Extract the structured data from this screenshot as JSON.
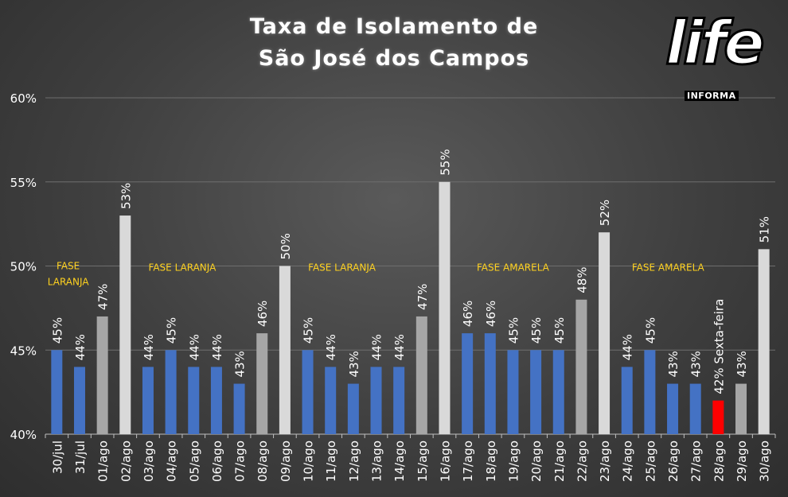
{
  "title": [
    "Taxa de Isolamento de",
    "São José dos Campos"
  ],
  "logo": {
    "main": "life",
    "sub": "INFORMA"
  },
  "chart_data": {
    "type": "bar",
    "ylim": [
      40,
      60
    ],
    "yticks": [
      "40%",
      "45%",
      "50%",
      "55%",
      "60%"
    ],
    "ytick_values": [
      40,
      45,
      50,
      55,
      60
    ],
    "grid": true,
    "categories": [
      "30/jul",
      "31/jul",
      "01/ago",
      "02/ago",
      "03/ago",
      "04/ago",
      "05/ago",
      "06/ago",
      "07/ago",
      "08/ago",
      "09/ago",
      "10/ago",
      "11/ago",
      "12/ago",
      "13/ago",
      "14/ago",
      "15/ago",
      "16/ago",
      "17/ago",
      "18/ago",
      "19/ago",
      "20/ago",
      "21/ago",
      "22/ago",
      "23/ago",
      "24/ago",
      "25/ago",
      "26/ago",
      "27/ago",
      "28/ago",
      "29/ago",
      "30/ago"
    ],
    "values": [
      45,
      44,
      47,
      53,
      44,
      45,
      44,
      44,
      43,
      46,
      50,
      45,
      44,
      43,
      44,
      44,
      47,
      55,
      46,
      46,
      45,
      45,
      45,
      48,
      52,
      44,
      45,
      43,
      43,
      42,
      43,
      51
    ],
    "data_labels": [
      "45%",
      "44%",
      "47%",
      "53%",
      "44%",
      "45%",
      "44%",
      "44%",
      "43%",
      "46%",
      "50%",
      "45%",
      "44%",
      "43%",
      "44%",
      "44%",
      "47%",
      "55%",
      "46%",
      "46%",
      "45%",
      "45%",
      "45%",
      "48%",
      "52%",
      "44%",
      "45%",
      "43%",
      "43%",
      "42% Sexta-feira",
      "43%",
      "51%"
    ],
    "bar_types": [
      "weekday",
      "weekday",
      "saturday",
      "sunday",
      "weekday",
      "weekday",
      "weekday",
      "weekday",
      "weekday",
      "saturday",
      "sunday",
      "weekday",
      "weekday",
      "weekday",
      "weekday",
      "weekday",
      "saturday",
      "sunday",
      "weekday",
      "weekday",
      "weekday",
      "weekday",
      "weekday",
      "saturday",
      "sunday",
      "weekday",
      "weekday",
      "weekday",
      "weekday",
      "highlight",
      "saturday",
      "sunday"
    ],
    "colors": {
      "weekday": "#4472c4",
      "saturday": "#a6a6a6",
      "sunday": "#d9d9d9",
      "highlight": "#ff0000",
      "grid": "#6e6e6e",
      "text": "#ffffff",
      "annotation": "#ffd21f"
    },
    "annotations": [
      {
        "lines": [
          "FASE",
          "LARANJA"
        ],
        "x_index": 0.5,
        "y_value": 50
      },
      {
        "lines": [
          "FASE LARANJA"
        ],
        "x_index": 5.5,
        "y_value": 50
      },
      {
        "lines": [
          "FASE LARANJA"
        ],
        "x_index": 12.5,
        "y_value": 50
      },
      {
        "lines": [
          "FASE AMARELA"
        ],
        "x_index": 20,
        "y_value": 50
      },
      {
        "lines": [
          "FASE AMARELA"
        ],
        "x_index": 26.8,
        "y_value": 50
      }
    ]
  }
}
